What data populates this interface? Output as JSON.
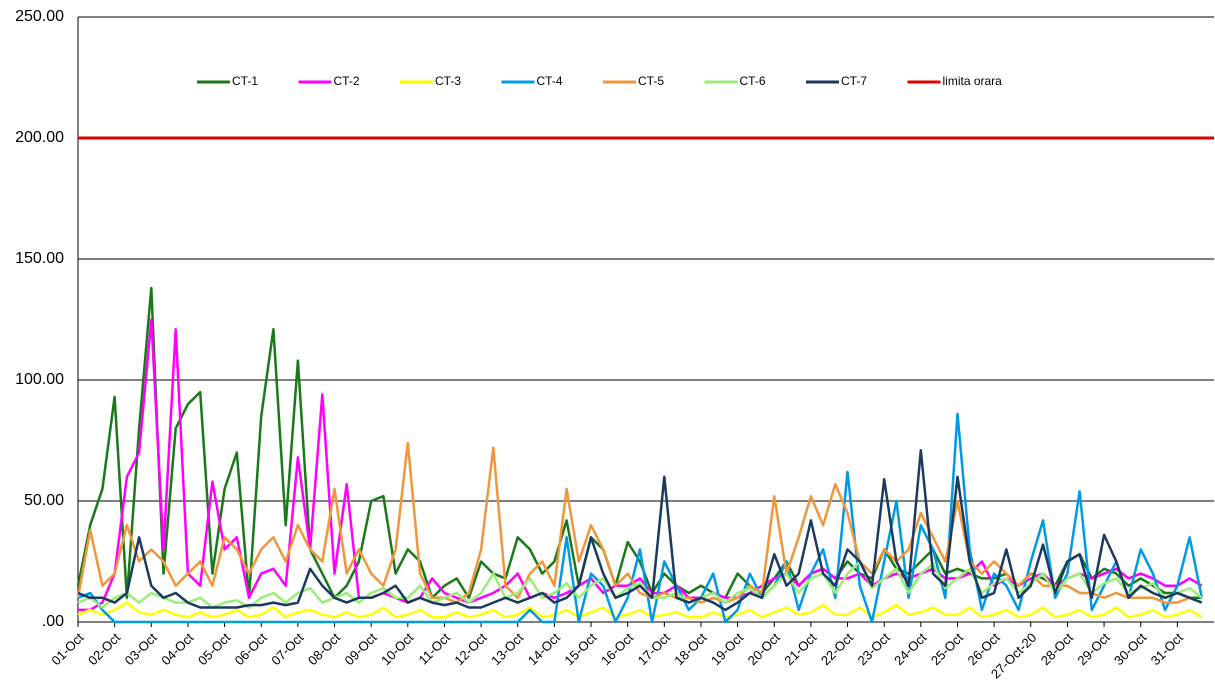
{
  "chart_data": {
    "type": "line",
    "categories": [
      "01-Oct",
      null,
      null,
      "02-Oct",
      null,
      null,
      "03-Oct",
      null,
      null,
      "04-Oct",
      null,
      null,
      "05-Oct",
      null,
      null,
      "06-Oct",
      null,
      null,
      "07-Oct",
      null,
      null,
      "08-Oct",
      null,
      null,
      "09-Oct",
      null,
      null,
      "10-Oct",
      null,
      null,
      "11-Oct",
      null,
      null,
      "12-Oct",
      null,
      null,
      "13-Oct",
      null,
      null,
      "14-Oct",
      null,
      null,
      "15-Oct",
      null,
      null,
      "16-Oct",
      null,
      null,
      "17-Oct",
      null,
      null,
      "18-Oct",
      null,
      null,
      "19-Oct",
      null,
      null,
      "20-Oct",
      null,
      null,
      "21-Oct",
      null,
      null,
      "22-Oct",
      null,
      null,
      "23-Oct",
      null,
      null,
      "24-Oct",
      null,
      null,
      "25-Oct",
      null,
      null,
      "26-Oct",
      null,
      null,
      "27-Oct-20",
      null,
      null,
      "28-Oct",
      null,
      null,
      "29-Oct",
      null,
      null,
      "30-Oct",
      null,
      null,
      "31-Oct",
      null,
      null
    ],
    "series": [
      {
        "name": "CT-1",
        "color": "#1a7a1a",
        "values": [
          15,
          40,
          55,
          93,
          10,
          80,
          138,
          20,
          80,
          90,
          95,
          20,
          55,
          70,
          10,
          85,
          121,
          40,
          108,
          30,
          20,
          10,
          15,
          25,
          50,
          52,
          20,
          30,
          25,
          10,
          15,
          18,
          10,
          25,
          20,
          18,
          35,
          30,
          20,
          25,
          42,
          15,
          35,
          30,
          15,
          33,
          25,
          12,
          20,
          15,
          12,
          15,
          12,
          10,
          20,
          15,
          12,
          18,
          25,
          15,
          20,
          22,
          18,
          25,
          20,
          18,
          30,
          22,
          20,
          25,
          30,
          20,
          22,
          20,
          18,
          18,
          20,
          15,
          20,
          18,
          15,
          25,
          28,
          18,
          22,
          20,
          15,
          18,
          15,
          12,
          12,
          10,
          10
        ]
      },
      {
        "name": "CT-2",
        "color": "#ff00ff",
        "values": [
          5,
          5,
          8,
          20,
          60,
          70,
          125,
          30,
          121,
          20,
          15,
          58,
          30,
          35,
          10,
          20,
          22,
          15,
          68,
          30,
          94,
          20,
          57,
          10,
          10,
          12,
          10,
          8,
          10,
          18,
          12,
          10,
          8,
          10,
          12,
          15,
          20,
          10,
          12,
          10,
          12,
          15,
          18,
          12,
          15,
          15,
          18,
          12,
          12,
          15,
          10,
          10,
          12,
          10,
          10,
          12,
          15,
          18,
          20,
          15,
          20,
          22,
          18,
          18,
          20,
          15,
          18,
          20,
          18,
          20,
          22,
          18,
          18,
          20,
          25,
          15,
          18,
          15,
          18,
          20,
          15,
          18,
          20,
          18,
          20,
          22,
          18,
          20,
          18,
          15,
          15,
          18,
          15
        ]
      },
      {
        "name": "CT-3",
        "color": "#ffff00",
        "values": [
          3,
          5,
          3,
          5,
          8,
          4,
          3,
          5,
          3,
          2,
          4,
          2,
          3,
          5,
          2,
          3,
          6,
          2,
          4,
          5,
          3,
          2,
          4,
          2,
          3,
          6,
          2,
          3,
          5,
          2,
          2,
          4,
          2,
          3,
          5,
          2,
          3,
          6,
          2,
          3,
          5,
          2,
          4,
          6,
          2,
          3,
          5,
          2,
          3,
          4,
          2,
          2,
          4,
          2,
          3,
          5,
          2,
          4,
          6,
          3,
          4,
          7,
          3,
          3,
          6,
          2,
          4,
          7,
          3,
          4,
          6,
          3,
          3,
          6,
          2,
          3,
          5,
          2,
          3,
          6,
          2,
          3,
          5,
          2,
          3,
          6,
          2,
          3,
          5,
          2,
          3,
          5,
          2
        ]
      },
      {
        "name": "CT-4",
        "color": "#0099e6",
        "values": [
          10,
          12,
          5,
          0,
          0,
          0,
          0,
          0,
          0,
          0,
          0,
          0,
          0,
          0,
          0,
          0,
          0,
          0,
          0,
          0,
          0,
          0,
          0,
          0,
          0,
          0,
          0,
          0,
          0,
          0,
          0,
          0,
          0,
          0,
          0,
          0,
          0,
          5,
          0,
          0,
          35,
          0,
          20,
          15,
          0,
          10,
          30,
          0,
          25,
          15,
          5,
          10,
          20,
          0,
          5,
          20,
          10,
          15,
          25,
          5,
          20,
          30,
          10,
          62,
          15,
          0,
          25,
          50,
          10,
          40,
          30,
          10,
          86,
          30,
          5,
          20,
          15,
          5,
          25,
          42,
          10,
          20,
          54,
          5,
          15,
          25,
          10,
          30,
          20,
          5,
          15,
          35,
          10
        ]
      },
      {
        "name": "CT-5",
        "color": "#f0963c",
        "values": [
          10,
          38,
          15,
          20,
          40,
          25,
          30,
          25,
          15,
          20,
          25,
          15,
          35,
          30,
          20,
          30,
          35,
          25,
          40,
          30,
          25,
          55,
          20,
          30,
          20,
          15,
          30,
          74,
          20,
          10,
          10,
          8,
          12,
          30,
          72,
          15,
          10,
          20,
          25,
          15,
          55,
          25,
          40,
          30,
          15,
          20,
          12,
          10,
          12,
          10,
          10,
          8,
          10,
          8,
          10,
          15,
          12,
          52,
          20,
          35,
          52,
          40,
          57,
          45,
          25,
          20,
          30,
          25,
          30,
          45,
          35,
          25,
          50,
          25,
          20,
          25,
          20,
          15,
          20,
          15,
          15,
          15,
          12,
          12,
          10,
          12,
          10,
          10,
          10,
          8,
          8,
          10,
          8
        ]
      },
      {
        "name": "CT-6",
        "color": "#99ee77",
        "values": [
          8,
          10,
          6,
          10,
          12,
          8,
          12,
          10,
          8,
          8,
          10,
          6,
          8,
          9,
          6,
          10,
          12,
          8,
          12,
          14,
          8,
          10,
          12,
          8,
          12,
          14,
          10,
          10,
          15,
          8,
          10,
          12,
          8,
          12,
          20,
          10,
          12,
          18,
          10,
          12,
          16,
          10,
          15,
          18,
          10,
          14,
          16,
          10,
          10,
          12,
          8,
          10,
          12,
          8,
          12,
          14,
          10,
          15,
          20,
          12,
          18,
          20,
          12,
          20,
          25,
          14,
          18,
          22,
          12,
          20,
          24,
          14,
          18,
          22,
          12,
          16,
          18,
          12,
          16,
          20,
          12,
          18,
          20,
          12,
          16,
          18,
          12,
          14,
          16,
          10,
          12,
          14,
          10
        ]
      },
      {
        "name": "CT-7",
        "color": "#1c3a5e",
        "values": [
          12,
          10,
          10,
          8,
          12,
          35,
          15,
          10,
          12,
          8,
          6,
          6,
          6,
          6,
          7,
          7,
          8,
          7,
          8,
          22,
          15,
          10,
          8,
          10,
          10,
          12,
          15,
          8,
          10,
          8,
          7,
          8,
          6,
          6,
          8,
          10,
          8,
          10,
          12,
          8,
          10,
          15,
          35,
          20,
          10,
          12,
          15,
          10,
          60,
          10,
          8,
          10,
          8,
          5,
          8,
          12,
          10,
          28,
          15,
          20,
          42,
          20,
          15,
          30,
          25,
          15,
          59,
          25,
          15,
          71,
          20,
          15,
          60,
          25,
          10,
          12,
          30,
          10,
          15,
          32,
          12,
          25,
          28,
          10,
          36,
          25,
          10,
          15,
          12,
          10,
          12,
          10,
          8
        ]
      }
    ],
    "reference_line": {
      "name": "limita orara",
      "value": 200,
      "color": "#e00000"
    },
    "ylim": [
      0,
      250
    ],
    "yticks": [
      {
        "value": 0,
        "label": ".00"
      },
      {
        "value": 50,
        "label": "50.00"
      },
      {
        "value": 100,
        "label": "100.00"
      },
      {
        "value": 150,
        "label": "150.00"
      },
      {
        "value": 200,
        "label": "200.00"
      },
      {
        "value": 250,
        "label": "250.00"
      }
    ],
    "grid": true
  }
}
